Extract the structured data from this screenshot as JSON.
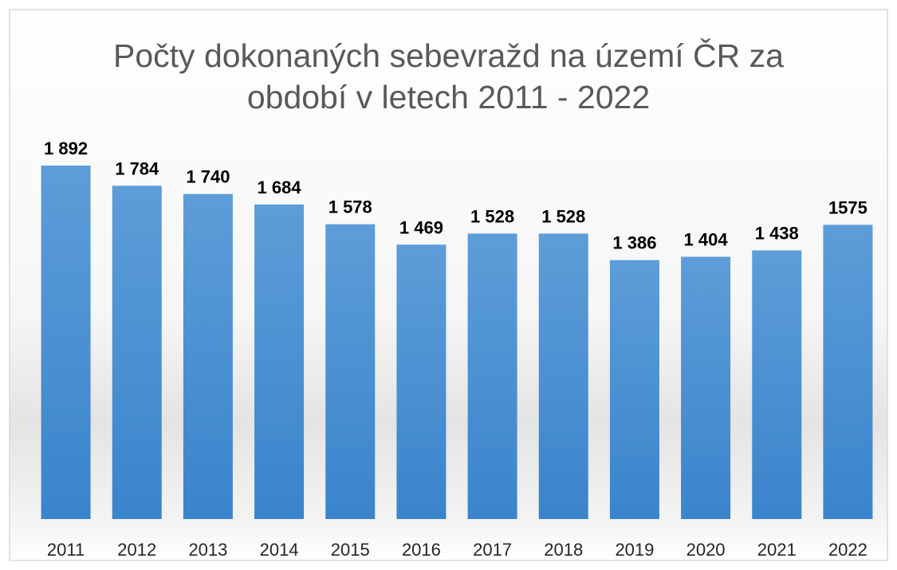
{
  "chart_data": {
    "type": "bar",
    "title": "Počty dokonaných sebevražd na území ČR za období v letech 2011 - 2022",
    "categories": [
      "2011",
      "2012",
      "2013",
      "2014",
      "2015",
      "2016",
      "2017",
      "2018",
      "2019",
      "2020",
      "2021",
      "2022"
    ],
    "values": [
      1892,
      1784,
      1740,
      1684,
      1578,
      1469,
      1528,
      1528,
      1386,
      1404,
      1438,
      1575
    ],
    "value_labels": [
      "1 892",
      "1 784",
      "1 740",
      "1 684",
      "1 578",
      "1 469",
      "1 528",
      "1 528",
      "1 386",
      "1 404",
      "1 438",
      "1575"
    ],
    "color": "#5b9bd5"
  }
}
